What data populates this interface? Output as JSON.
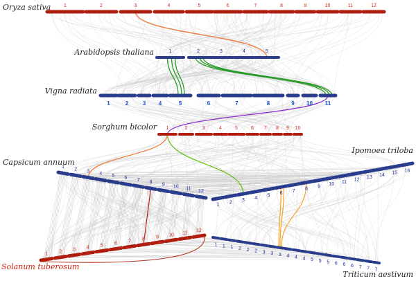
{
  "colors": {
    "red_chr": "#b01e10",
    "blue_chr": "#2a3c8c",
    "red_text": "#d42a1a",
    "blue_text": "#1c2e9a",
    "vr_text": "#1a4fd0",
    "grey_link": "#c8c8c8",
    "orange_link": "#f07a3a",
    "green_link": "#2a9a2a",
    "lime_link": "#6ac21a",
    "purple_link": "#8a2ad0",
    "light_orange_link": "#f5a623",
    "dark_red_link": "#b01e10",
    "red_species": "#d11e0e",
    "black_species": "#222222"
  },
  "species": [
    {
      "id": "oryza",
      "name": "Oryza sativa",
      "chromosomes": [
        "1",
        "2",
        "3",
        "4",
        "5",
        "6",
        "7",
        "8",
        "9",
        "10",
        "11",
        "12"
      ]
    },
    {
      "id": "arabidopsis",
      "name": "Arabidopsis thaliana",
      "chromosomes": [
        "1",
        "2",
        "3",
        "4",
        "5"
      ]
    },
    {
      "id": "vigna",
      "name": "Vigna radiata",
      "chromosomes": [
        "1",
        "2",
        "3",
        "4",
        "5",
        "6",
        "7",
        "8",
        "9",
        "10",
        "11"
      ]
    },
    {
      "id": "sorghum",
      "name": "Sorghum bicolor",
      "chromosomes": [
        "1",
        "2",
        "3",
        "4",
        "5",
        "6",
        "7",
        "8",
        "9",
        "10"
      ]
    },
    {
      "id": "capsicum",
      "name": "Capsicum annuum",
      "chromosomes": [
        "1",
        "2",
        "3",
        "4",
        "5",
        "6",
        "7",
        "8",
        "9",
        "10",
        "11",
        "12"
      ]
    },
    {
      "id": "ipomoea",
      "name": "Ipomoea triloba",
      "chromosomes": [
        "1",
        "2",
        "3",
        "4",
        "5",
        "6",
        "7",
        "8",
        "9",
        "10",
        "11",
        "12",
        "13",
        "14",
        "15",
        "16"
      ]
    },
    {
      "id": "solanum",
      "name": "Solanum tuberosum",
      "chromosomes": [
        "1",
        "2",
        "3",
        "4",
        "5",
        "6",
        "7",
        "8",
        "9",
        "10",
        "11",
        "12"
      ]
    },
    {
      "id": "triticum",
      "name": "Triticum aestivum",
      "chromosomes": [
        "1",
        "1",
        "1",
        "2",
        "2",
        "2",
        "3",
        "3",
        "3",
        "4",
        "4",
        "4",
        "5",
        "5",
        "5",
        "6",
        "6",
        "6",
        "7",
        "7",
        "7"
      ]
    }
  ],
  "highlight_links": [
    {
      "from": "Oryza sativa 3",
      "to": "Arabidopsis thaliana 5",
      "color": "orange"
    },
    {
      "from": "Arabidopsis thaliana 1",
      "to": "Vigna radiata 5",
      "color": "green"
    },
    {
      "from": "Arabidopsis thaliana 2",
      "to": "Vigna radiata 11",
      "color": "green"
    },
    {
      "from": "Vigna radiata 11",
      "to": "Sorghum bicolor 1",
      "color": "purple"
    },
    {
      "from": "Sorghum bicolor 1",
      "to": "Capsicum annuum 3",
      "color": "orange"
    },
    {
      "from": "Sorghum bicolor 1",
      "to": "Ipomoea triloba 3",
      "color": "lime"
    },
    {
      "from": "Ipomoea triloba 6",
      "to": "Triticum aestivum 3",
      "color": "light-orange"
    },
    {
      "from": "Capsicum annuum 8",
      "to": "Solanum tuberosum 8",
      "color": "dark-red"
    }
  ]
}
